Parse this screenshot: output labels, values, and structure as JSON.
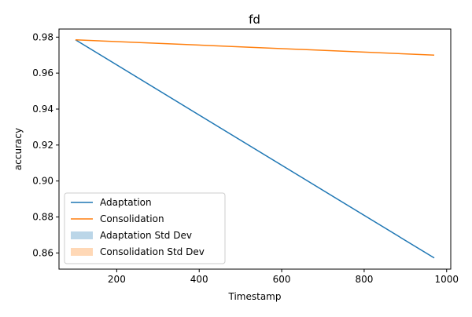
{
  "chart_data": {
    "type": "line",
    "title": "fd",
    "xlabel": "Timestamp",
    "ylabel": "accuracy",
    "xlim": [
      60,
      1010
    ],
    "ylim": [
      0.851,
      0.9845
    ],
    "xticks": [
      200,
      400,
      600,
      800,
      1000
    ],
    "yticks": [
      0.86,
      0.88,
      0.9,
      0.92,
      0.94,
      0.96,
      0.98
    ],
    "xtick_labels": [
      "200",
      "400",
      "600",
      "800",
      "1000"
    ],
    "ytick_labels": [
      "0.86",
      "0.88",
      "0.90",
      "0.92",
      "0.94",
      "0.96",
      "0.98"
    ],
    "grid": false,
    "legend_position": "lower-left",
    "series": [
      {
        "name": "Adaptation",
        "color": "#1f77b4",
        "x": [
          100,
          970
        ],
        "y": [
          0.9785,
          0.8572
        ]
      },
      {
        "name": "Consolidation",
        "color": "#ff7f0e",
        "x": [
          100,
          970
        ],
        "y": [
          0.9785,
          0.97
        ]
      }
    ],
    "bands": [
      {
        "name": "Adaptation Std Dev",
        "color": "#1f77b4",
        "opacity": 0.3
      },
      {
        "name": "Consolidation Std Dev",
        "color": "#ff7f0e",
        "opacity": 0.3
      }
    ]
  }
}
